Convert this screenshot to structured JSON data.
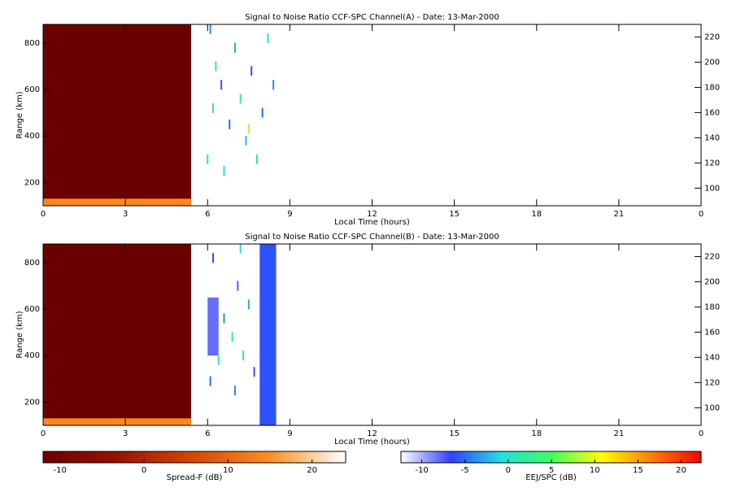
{
  "chart_data": [
    {
      "type": "heatmap",
      "title": "Signal to Noise Ratio CCF-SPC Channel(A) - Date: 13-Mar-2000",
      "x_label": "Local Time (hours)",
      "y_label": "Range (km)",
      "xlim": [
        0,
        24
      ],
      "xticks": [
        0,
        3,
        6,
        9,
        12,
        15,
        18,
        21,
        {
          "value": 24,
          "label": "0"
        }
      ],
      "ylim": [
        100,
        880
      ],
      "yticks": [
        200,
        400,
        600,
        800
      ],
      "y2lim": [
        86,
        230
      ],
      "y2ticks": [
        100,
        120,
        140,
        160,
        180,
        200,
        220
      ],
      "spread_f_blocks": [
        {
          "x0": 0,
          "x1": 5.4,
          "y0": 130,
          "y1": 880,
          "value": -12
        },
        {
          "x0": 0,
          "x1": 5.4,
          "y0": 100,
          "y1": 130,
          "value": 14
        }
      ],
      "eej_blocks": [],
      "eej_points": [
        {
          "x": 6.1,
          "y": 860,
          "value": -4
        },
        {
          "x": 6.3,
          "y": 700,
          "value": 0
        },
        {
          "x": 6.5,
          "y": 620,
          "value": -6
        },
        {
          "x": 6.2,
          "y": 520,
          "value": 2
        },
        {
          "x": 6.8,
          "y": 450,
          "value": -5
        },
        {
          "x": 7.0,
          "y": 780,
          "value": -3
        },
        {
          "x": 7.2,
          "y": 560,
          "value": 1
        },
        {
          "x": 7.4,
          "y": 380,
          "value": -2
        },
        {
          "x": 7.6,
          "y": 680,
          "value": -6
        },
        {
          "x": 7.8,
          "y": 300,
          "value": 0
        },
        {
          "x": 8.0,
          "y": 500,
          "value": -5
        },
        {
          "x": 8.2,
          "y": 820,
          "value": 1
        },
        {
          "x": 8.4,
          "y": 620,
          "value": -4
        },
        {
          "x": 6.0,
          "y": 300,
          "value": 0
        },
        {
          "x": 6.6,
          "y": 250,
          "value": -1
        },
        {
          "x": 7.5,
          "y": 430,
          "value": 8
        }
      ]
    },
    {
      "type": "heatmap",
      "title": "Signal to Noise Ratio CCF-SPC Channel(B) - Date: 13-Mar-2000",
      "x_label": "Local Time (hours)",
      "y_label": "Range (km)",
      "xlim": [
        0,
        24
      ],
      "xticks": [
        0,
        3,
        6,
        9,
        12,
        15,
        18,
        21,
        {
          "value": 24,
          "label": "0"
        }
      ],
      "ylim": [
        100,
        880
      ],
      "yticks": [
        200,
        400,
        600,
        800
      ],
      "y2lim": [
        86,
        230
      ],
      "y2ticks": [
        100,
        120,
        140,
        160,
        180,
        200,
        220
      ],
      "spread_f_blocks": [
        {
          "x0": 0,
          "x1": 5.4,
          "y0": 130,
          "y1": 880,
          "value": -12
        },
        {
          "x0": 0,
          "x1": 5.4,
          "y0": 100,
          "y1": 130,
          "value": 14
        }
      ],
      "eej_blocks": [
        {
          "x0": 6.0,
          "x1": 6.4,
          "y0": 400,
          "y1": 650,
          "value": -8
        },
        {
          "x0": 7.9,
          "x1": 8.5,
          "y0": 100,
          "y1": 880,
          "value": -6
        }
      ],
      "eej_points": [
        {
          "x": 6.2,
          "y": 820,
          "value": -6
        },
        {
          "x": 6.6,
          "y": 560,
          "value": -4
        },
        {
          "x": 6.9,
          "y": 480,
          "value": 0
        },
        {
          "x": 7.1,
          "y": 700,
          "value": -5
        },
        {
          "x": 7.3,
          "y": 400,
          "value": 1
        },
        {
          "x": 7.5,
          "y": 620,
          "value": -3
        },
        {
          "x": 7.7,
          "y": 330,
          "value": -6
        },
        {
          "x": 6.1,
          "y": 290,
          "value": -5
        },
        {
          "x": 6.4,
          "y": 380,
          "value": 2
        },
        {
          "x": 7.0,
          "y": 250,
          "value": -4
        },
        {
          "x": 7.2,
          "y": 860,
          "value": 0
        }
      ]
    },
    {
      "type": "colorbar",
      "label": "Spread-F (dB)",
      "lim": [
        -12,
        24
      ],
      "ticks": [
        -10,
        0,
        10,
        20
      ],
      "colors": [
        "#6b0000",
        "#9a1200",
        "#d84800",
        "#ff9020",
        "#ffffff"
      ]
    },
    {
      "type": "colorbar",
      "label": "EEJ/SPC (dB)",
      "lim": [
        -12.4,
        22.3
      ],
      "ticks": [
        -10,
        -5,
        0,
        5,
        10,
        15,
        20
      ],
      "colors": [
        "#ffffff",
        "#3040ff",
        "#20e0e0",
        "#40ff60",
        "#ffff00",
        "#ff8000",
        "#ff0000"
      ]
    }
  ]
}
